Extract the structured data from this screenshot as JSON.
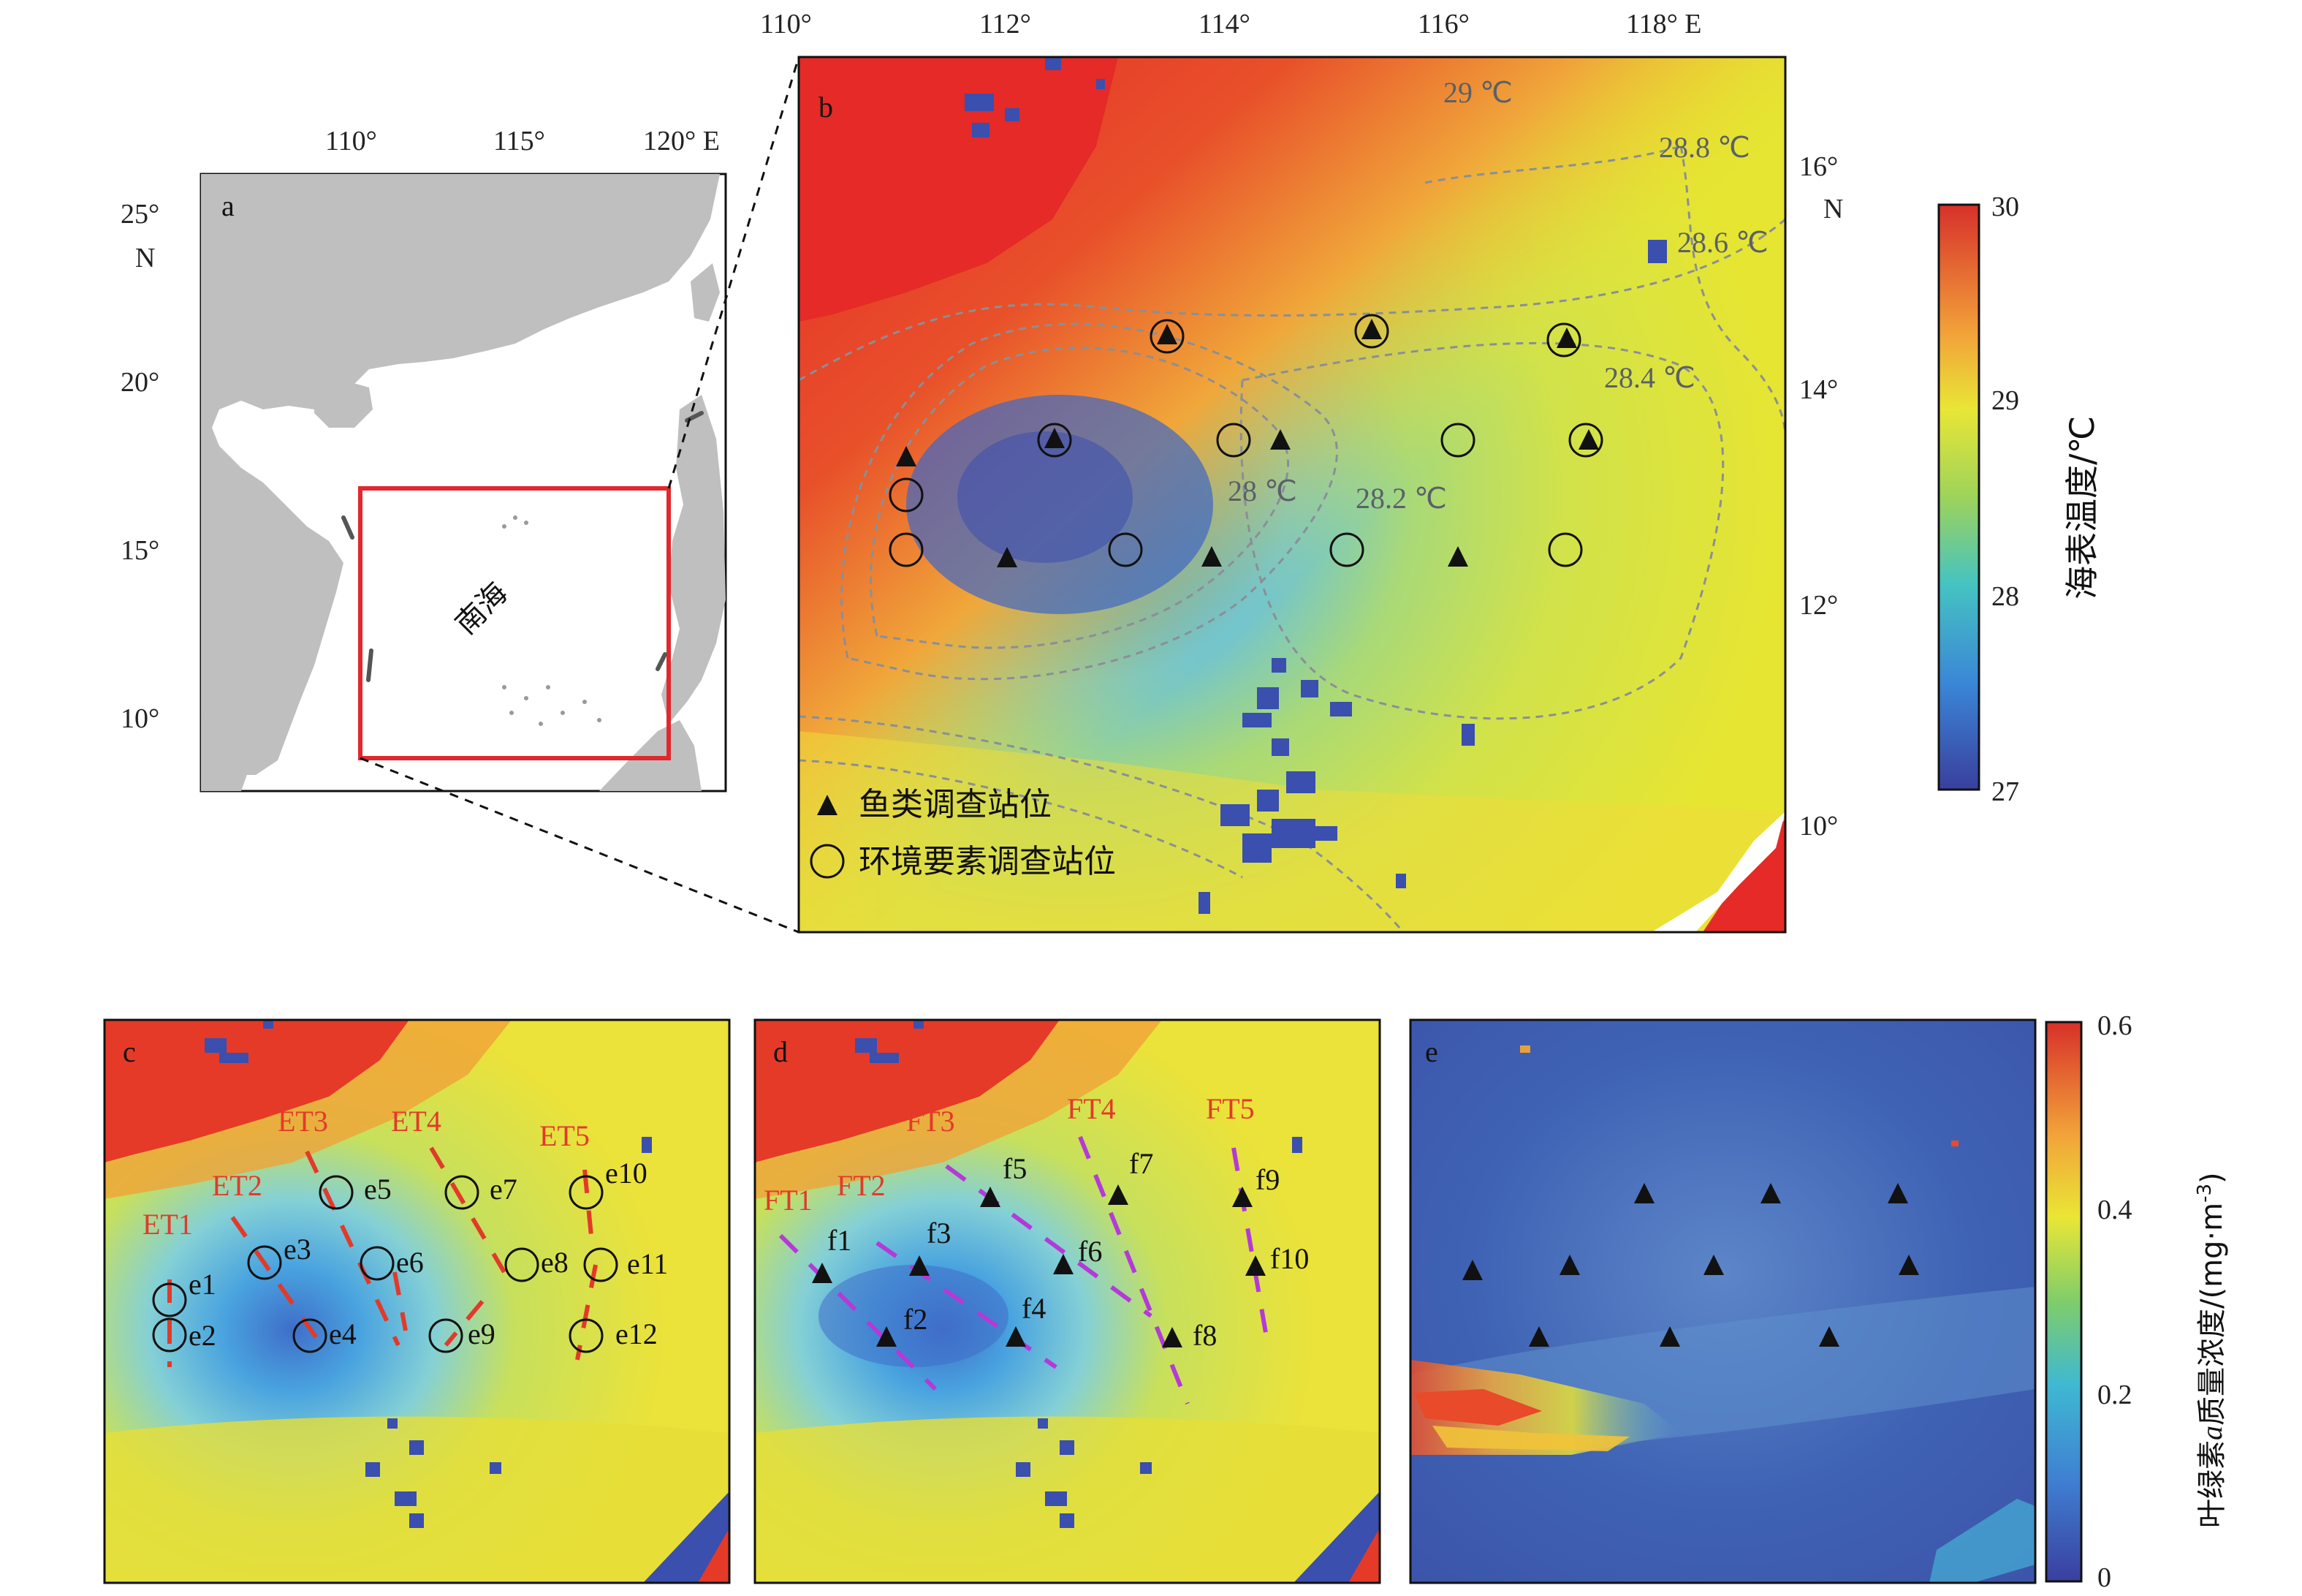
{
  "panels": {
    "a": {
      "label": "a",
      "lon_ticks": [
        "110°",
        "115°",
        "120° E"
      ],
      "lat_ticks": [
        "25°",
        "20°",
        "15°",
        "10°"
      ],
      "lat_unit": "N",
      "region_label": "南海",
      "colors": {
        "land": "#bfbfbf",
        "sea": "#ffffff",
        "box": "#e0282e"
      }
    },
    "b": {
      "label": "b",
      "lon_ticks": [
        "110°",
        "112°",
        "114°",
        "116°",
        "118° E"
      ],
      "lat_ticks": [
        "16°",
        "14°",
        "12°",
        "10°"
      ],
      "lat_unit": "N",
      "contour_labels": [
        "29 ℃",
        "28.8 ℃",
        "28.6 ℃",
        "28.4 ℃",
        "28 ℃",
        "28.2 ℃"
      ],
      "legend": {
        "fish": "鱼类调查站位",
        "env": "环境要素调查站位"
      },
      "colorbar": {
        "title": "海表温度/℃",
        "ticks": [
          "30",
          "29",
          "28",
          "27"
        ],
        "range": [
          27,
          30
        ]
      }
    },
    "c": {
      "label": "c",
      "transects": [
        "ET1",
        "ET2",
        "ET3",
        "ET4",
        "ET5"
      ],
      "stations": [
        "e1",
        "e2",
        "e3",
        "e4",
        "e5",
        "e6",
        "e7",
        "e8",
        "e9",
        "e10",
        "e11",
        "e12"
      ]
    },
    "d": {
      "label": "d",
      "transects": [
        "FT1",
        "FT2",
        "FT3",
        "FT4",
        "FT5"
      ],
      "stations": [
        "f1",
        "f2",
        "f3",
        "f4",
        "f5",
        "f6",
        "f7",
        "f8",
        "f9",
        "f10"
      ]
    },
    "e": {
      "label": "e",
      "colorbar": {
        "title_pre": "叶绿素",
        "title_italic": "a",
        "title_post": "质量浓度/(mg·m",
        "title_sup": "-3",
        "title_end": ")",
        "ticks": [
          "0.6",
          "0.4",
          "0.2",
          "0"
        ],
        "range": [
          0,
          0.6
        ]
      }
    }
  },
  "colors": {
    "sst_warm": "#e8302a",
    "sst_mid": "#e6e532",
    "sst_cool": "#4aa6e0",
    "sst_cold": "#3a55b5",
    "chl_low": "#3d5cb0",
    "et_red": "#e23a2a",
    "ft_purple": "#b43ad8"
  }
}
